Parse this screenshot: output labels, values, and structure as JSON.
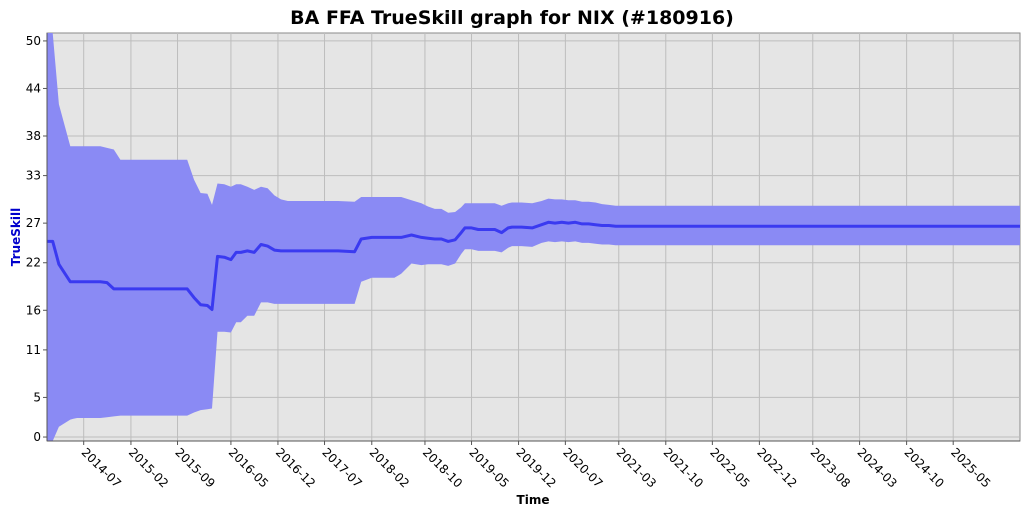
{
  "chart_data": {
    "type": "line",
    "title": "BA FFA TrueSkill graph for NIX (#180916)",
    "xlabel": "Time",
    "ylabel": "TrueSkill",
    "ylim": [
      -0.5,
      51
    ],
    "yticks": [
      0,
      5,
      11,
      16,
      22,
      27,
      33,
      38,
      44,
      50
    ],
    "xticks": [
      "2014-07",
      "2015-02",
      "2015-09",
      "2016-05",
      "2016-12",
      "2017-07",
      "2018-02",
      "2018-10",
      "2019-05",
      "2019-12",
      "2020-07",
      "2021-03",
      "2021-10",
      "2022-05",
      "2022-12",
      "2023-08",
      "2024-03",
      "2024-10",
      "2025-05"
    ],
    "xlim": [
      "2014-01-15",
      "2026-03-01"
    ],
    "grid": true,
    "legend": "none",
    "colors": {
      "line": "#3a3af0",
      "band": "#8a8af4",
      "plot_bg": "#e5e5e5",
      "ylabel": "#0000cc"
    },
    "series": [
      {
        "x": [
          "2014-01-15",
          "2014-02-10",
          "2014-03-10",
          "2014-05-01",
          "2014-05-15",
          "2014-06-01",
          "2014-07-01",
          "2014-08-01",
          "2014-09-15",
          "2014-10-15",
          "2014-11-15",
          "2014-12-15",
          "2015-01-15",
          "2015-03-01",
          "2015-05-01",
          "2015-07-01",
          "2015-09-01",
          "2015-10-15",
          "2015-11-15",
          "2015-12-15",
          "2016-01-15",
          "2016-02-05",
          "2016-03-01",
          "2016-04-01",
          "2016-05-01",
          "2016-05-25",
          "2016-06-15",
          "2016-07-15",
          "2016-08-15",
          "2016-09-15",
          "2016-10-15",
          "2016-11-15",
          "2016-12-15",
          "2017-01-15",
          "2017-03-01",
          "2017-05-01",
          "2017-07-01",
          "2017-09-01",
          "2017-11-15",
          "2017-12-15",
          "2018-02-01",
          "2018-04-01",
          "2018-05-15",
          "2018-06-15",
          "2018-08-01",
          "2018-09-15",
          "2018-10-15",
          "2018-11-15",
          "2018-12-15",
          "2019-01-15",
          "2019-02-15",
          "2019-03-15",
          "2019-04-01",
          "2019-05-01",
          "2019-06-01",
          "2019-07-01",
          "2019-08-15",
          "2019-09-15",
          "2019-10-15",
          "2019-11-01",
          "2019-12-15",
          "2020-02-01",
          "2020-03-15",
          "2020-04-15",
          "2020-05-15",
          "2020-06-15",
          "2020-07-15",
          "2020-08-15",
          "2020-09-15",
          "2020-10-15",
          "2020-11-15",
          "2020-12-15",
          "2021-01-15",
          "2021-02-15",
          "2021-03-15",
          "2021-06-01",
          "2022-01-01",
          "2023-01-01",
          "2024-01-01",
          "2025-01-01",
          "2026-03-01"
        ],
        "mu": [
          24.7,
          24.7,
          21.8,
          19.6,
          19.6,
          19.6,
          19.6,
          19.6,
          19.6,
          19.5,
          18.7,
          18.7,
          18.7,
          18.7,
          18.7,
          18.7,
          18.7,
          18.7,
          17.6,
          16.7,
          16.6,
          16.1,
          22.8,
          22.7,
          22.4,
          23.3,
          23.3,
          23.5,
          23.3,
          24.3,
          24.1,
          23.6,
          23.5,
          23.5,
          23.5,
          23.5,
          23.5,
          23.5,
          23.4,
          25.0,
          25.2,
          25.2,
          25.2,
          25.2,
          25.5,
          25.2,
          25.1,
          25.0,
          25.0,
          24.7,
          24.9,
          25.8,
          26.4,
          26.4,
          26.2,
          26.2,
          26.2,
          25.8,
          26.4,
          26.5,
          26.5,
          26.4,
          26.8,
          27.1,
          27.0,
          27.1,
          27.0,
          27.1,
          26.9,
          26.9,
          26.8,
          26.7,
          26.7,
          26.6,
          26.6,
          26.6,
          26.6,
          26.6,
          26.6,
          26.6,
          26.6
        ],
        "upper": [
          51.0,
          51.0,
          42.0,
          36.7,
          36.7,
          36.7,
          36.7,
          36.7,
          36.7,
          36.5,
          36.3,
          35.0,
          35.0,
          35.0,
          35.0,
          35.0,
          35.0,
          35.0,
          32.5,
          30.8,
          30.7,
          29.3,
          32.0,
          31.9,
          31.6,
          31.9,
          31.9,
          31.6,
          31.2,
          31.6,
          31.4,
          30.5,
          30.0,
          29.8,
          29.8,
          29.8,
          29.8,
          29.8,
          29.7,
          30.3,
          30.3,
          30.3,
          30.3,
          30.3,
          29.9,
          29.5,
          29.1,
          28.8,
          28.8,
          28.3,
          28.4,
          29.0,
          29.5,
          29.5,
          29.5,
          29.5,
          29.5,
          29.2,
          29.5,
          29.6,
          29.6,
          29.5,
          29.8,
          30.1,
          30.0,
          30.0,
          29.9,
          29.9,
          29.7,
          29.7,
          29.6,
          29.4,
          29.3,
          29.2,
          29.2,
          29.2,
          29.2,
          29.2,
          29.2,
          29.2,
          29.2
        ],
        "lower": [
          -0.5,
          -0.5,
          1.3,
          2.2,
          2.3,
          2.4,
          2.4,
          2.4,
          2.4,
          2.5,
          2.6,
          2.7,
          2.7,
          2.7,
          2.7,
          2.7,
          2.7,
          2.7,
          3.1,
          3.4,
          3.5,
          3.6,
          13.3,
          13.3,
          13.2,
          14.5,
          14.5,
          15.3,
          15.3,
          17.0,
          17.0,
          16.8,
          16.8,
          16.8,
          16.8,
          16.8,
          16.8,
          16.8,
          16.8,
          19.6,
          20.1,
          20.1,
          20.1,
          20.6,
          21.9,
          21.7,
          21.8,
          21.8,
          21.8,
          21.6,
          21.9,
          23.1,
          23.7,
          23.7,
          23.5,
          23.5,
          23.5,
          23.3,
          23.9,
          24.1,
          24.1,
          24.0,
          24.5,
          24.7,
          24.6,
          24.7,
          24.6,
          24.7,
          24.5,
          24.5,
          24.4,
          24.3,
          24.3,
          24.2,
          24.2,
          24.2,
          24.2,
          24.2,
          24.2,
          24.2,
          24.2
        ]
      }
    ]
  }
}
